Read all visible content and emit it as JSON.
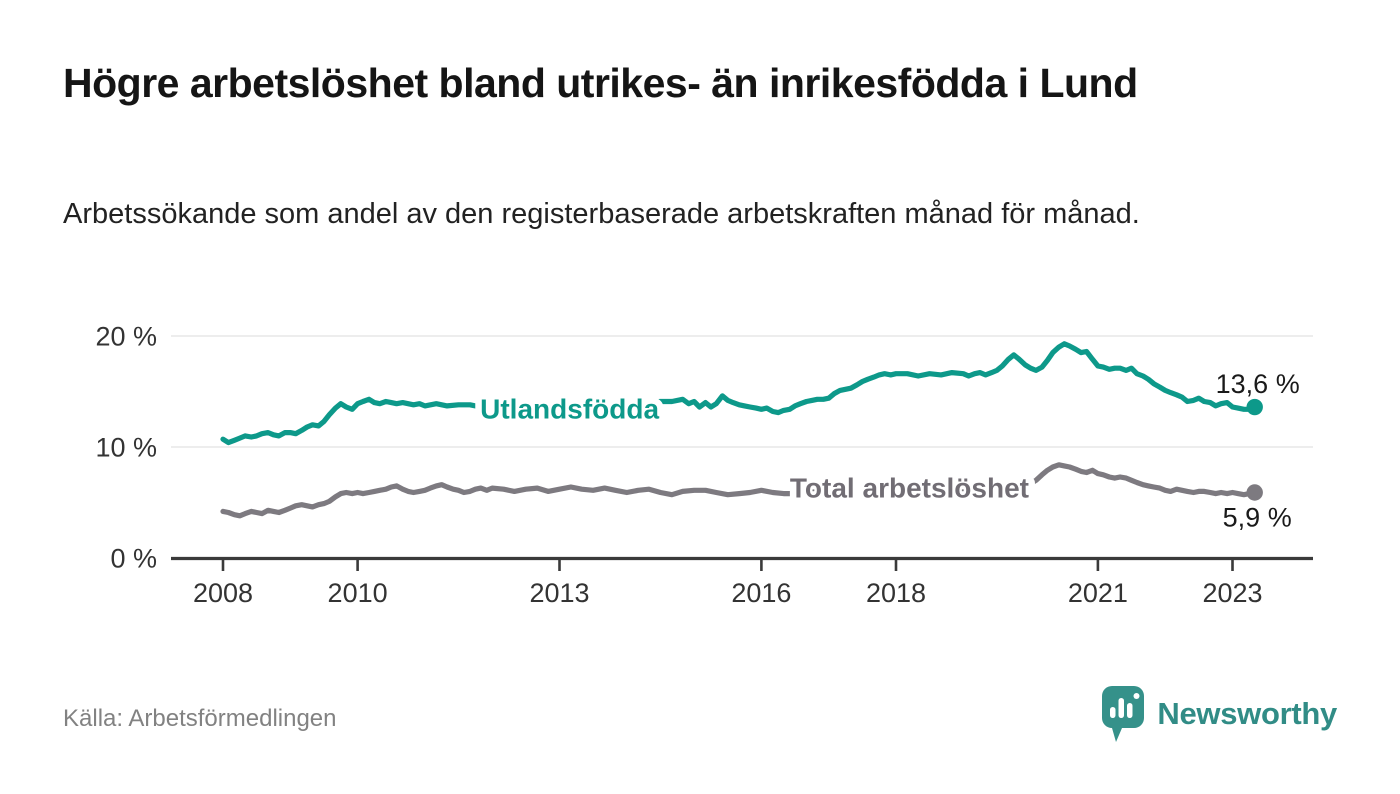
{
  "header": {
    "title": "Högre arbetslöshet bland utrikes- än inrikesfödda i Lund",
    "subtitle": "Arbetssökande som andel av den registerbaserade arbetskraften månad för månad."
  },
  "footer": {
    "source": "Källa: Arbetsförmedlingen",
    "brand": "Newsworthy"
  },
  "colors": {
    "teal": "#0d998a",
    "teal_label": "#0d998a",
    "gray": "#7d7a80",
    "gray_label": "#716d74",
    "axis": "#3a3a3a",
    "grid": "#e2e2e2",
    "tick_label": "#333333",
    "end_label": "#1a1a1a",
    "brand": "#318c86",
    "brand_icon": "#35918a"
  },
  "chart_data": {
    "type": "line",
    "x_unit": "decimal_year",
    "xlim": [
      2007.23,
      2024.2
    ],
    "ylim": [
      0,
      20.5
    ],
    "grid": true,
    "legend_position": "inline-labels",
    "yticks": [
      {
        "value": 0,
        "label": "0 %"
      },
      {
        "value": 10,
        "label": "10 %"
      },
      {
        "value": 20,
        "label": "20 %"
      }
    ],
    "grid_values": [
      10,
      20
    ],
    "xticks": [
      {
        "value": 2008,
        "label": "2008"
      },
      {
        "value": 2010,
        "label": "2010"
      },
      {
        "value": 2013,
        "label": "2013"
      },
      {
        "value": 2016,
        "label": "2016"
      },
      {
        "value": 2018,
        "label": "2018"
      },
      {
        "value": 2021,
        "label": "2021"
      },
      {
        "value": 2023,
        "label": "2023"
      }
    ],
    "series": [
      {
        "id": "utlandsfodda",
        "name": "Utlandsfödda",
        "color": "#0d998a",
        "label_color": "#0d998a",
        "label_at": [
          2013.15,
          13.45
        ],
        "end_label": "13,6 %",
        "end_value": 13.6,
        "points": [
          [
            2008.0,
            10.7
          ],
          [
            2008.08,
            10.4
          ],
          [
            2008.17,
            10.6
          ],
          [
            2008.25,
            10.8
          ],
          [
            2008.33,
            11.0
          ],
          [
            2008.42,
            10.9
          ],
          [
            2008.5,
            11.0
          ],
          [
            2008.58,
            11.2
          ],
          [
            2008.67,
            11.3
          ],
          [
            2008.75,
            11.1
          ],
          [
            2008.83,
            11.0
          ],
          [
            2008.92,
            11.3
          ],
          [
            2009.0,
            11.3
          ],
          [
            2009.08,
            11.2
          ],
          [
            2009.17,
            11.5
          ],
          [
            2009.25,
            11.8
          ],
          [
            2009.33,
            12.0
          ],
          [
            2009.42,
            11.9
          ],
          [
            2009.5,
            12.3
          ],
          [
            2009.58,
            12.9
          ],
          [
            2009.67,
            13.5
          ],
          [
            2009.75,
            13.9
          ],
          [
            2009.83,
            13.6
          ],
          [
            2009.92,
            13.4
          ],
          [
            2010.0,
            13.9
          ],
          [
            2010.08,
            14.1
          ],
          [
            2010.17,
            14.3
          ],
          [
            2010.25,
            14.0
          ],
          [
            2010.33,
            13.9
          ],
          [
            2010.42,
            14.1
          ],
          [
            2010.5,
            14.0
          ],
          [
            2010.58,
            13.9
          ],
          [
            2010.67,
            14.0
          ],
          [
            2010.75,
            13.9
          ],
          [
            2010.83,
            13.8
          ],
          [
            2010.92,
            13.9
          ],
          [
            2011.0,
            13.7
          ],
          [
            2011.17,
            13.9
          ],
          [
            2011.33,
            13.7
          ],
          [
            2011.5,
            13.8
          ],
          [
            2011.67,
            13.8
          ],
          [
            2011.83,
            13.6
          ],
          [
            2012.0,
            13.7
          ],
          [
            2012.25,
            13.6
          ],
          [
            2012.5,
            13.5
          ],
          [
            2012.75,
            13.6
          ],
          [
            2013.0,
            13.6
          ],
          [
            2013.25,
            13.7
          ],
          [
            2013.5,
            13.8
          ],
          [
            2013.75,
            13.7
          ],
          [
            2014.0,
            13.9
          ],
          [
            2014.25,
            14.0
          ],
          [
            2014.5,
            14.1
          ],
          [
            2014.67,
            14.1
          ],
          [
            2014.83,
            14.3
          ],
          [
            2014.92,
            13.9
          ],
          [
            2015.0,
            14.1
          ],
          [
            2015.08,
            13.6
          ],
          [
            2015.17,
            14.0
          ],
          [
            2015.25,
            13.6
          ],
          [
            2015.33,
            13.9
          ],
          [
            2015.42,
            14.6
          ],
          [
            2015.5,
            14.2
          ],
          [
            2015.58,
            14.0
          ],
          [
            2015.67,
            13.8
          ],
          [
            2015.75,
            13.7
          ],
          [
            2015.83,
            13.6
          ],
          [
            2015.92,
            13.5
          ],
          [
            2016.0,
            13.4
          ],
          [
            2016.08,
            13.5
          ],
          [
            2016.17,
            13.2
          ],
          [
            2016.25,
            13.1
          ],
          [
            2016.33,
            13.3
          ],
          [
            2016.42,
            13.4
          ],
          [
            2016.5,
            13.7
          ],
          [
            2016.58,
            13.9
          ],
          [
            2016.67,
            14.1
          ],
          [
            2016.75,
            14.2
          ],
          [
            2016.83,
            14.3
          ],
          [
            2016.92,
            14.3
          ],
          [
            2017.0,
            14.4
          ],
          [
            2017.08,
            14.8
          ],
          [
            2017.17,
            15.1
          ],
          [
            2017.25,
            15.2
          ],
          [
            2017.33,
            15.3
          ],
          [
            2017.42,
            15.6
          ],
          [
            2017.5,
            15.9
          ],
          [
            2017.58,
            16.1
          ],
          [
            2017.67,
            16.3
          ],
          [
            2017.75,
            16.5
          ],
          [
            2017.83,
            16.6
          ],
          [
            2017.92,
            16.5
          ],
          [
            2018.0,
            16.6
          ],
          [
            2018.17,
            16.6
          ],
          [
            2018.33,
            16.4
          ],
          [
            2018.5,
            16.6
          ],
          [
            2018.67,
            16.5
          ],
          [
            2018.83,
            16.7
          ],
          [
            2019.0,
            16.6
          ],
          [
            2019.08,
            16.4
          ],
          [
            2019.17,
            16.6
          ],
          [
            2019.25,
            16.7
          ],
          [
            2019.33,
            16.5
          ],
          [
            2019.42,
            16.7
          ],
          [
            2019.5,
            16.9
          ],
          [
            2019.58,
            17.3
          ],
          [
            2019.67,
            17.9
          ],
          [
            2019.75,
            18.3
          ],
          [
            2019.83,
            17.9
          ],
          [
            2019.92,
            17.4
          ],
          [
            2020.0,
            17.1
          ],
          [
            2020.08,
            16.9
          ],
          [
            2020.17,
            17.2
          ],
          [
            2020.25,
            17.8
          ],
          [
            2020.33,
            18.5
          ],
          [
            2020.42,
            19.0
          ],
          [
            2020.5,
            19.3
          ],
          [
            2020.58,
            19.1
          ],
          [
            2020.67,
            18.8
          ],
          [
            2020.75,
            18.5
          ],
          [
            2020.83,
            18.6
          ],
          [
            2020.92,
            17.9
          ],
          [
            2021.0,
            17.3
          ],
          [
            2021.08,
            17.2
          ],
          [
            2021.17,
            17.0
          ],
          [
            2021.25,
            17.1
          ],
          [
            2021.33,
            17.1
          ],
          [
            2021.42,
            16.9
          ],
          [
            2021.5,
            17.1
          ],
          [
            2021.58,
            16.6
          ],
          [
            2021.67,
            16.4
          ],
          [
            2021.75,
            16.1
          ],
          [
            2021.83,
            15.7
          ],
          [
            2021.92,
            15.4
          ],
          [
            2022.0,
            15.1
          ],
          [
            2022.08,
            14.9
          ],
          [
            2022.17,
            14.7
          ],
          [
            2022.25,
            14.5
          ],
          [
            2022.33,
            14.1
          ],
          [
            2022.42,
            14.2
          ],
          [
            2022.5,
            14.4
          ],
          [
            2022.58,
            14.1
          ],
          [
            2022.67,
            14.0
          ],
          [
            2022.75,
            13.7
          ],
          [
            2022.83,
            13.9
          ],
          [
            2022.92,
            14.0
          ],
          [
            2023.0,
            13.6
          ],
          [
            2023.08,
            13.5
          ],
          [
            2023.17,
            13.4
          ],
          [
            2023.25,
            13.4
          ],
          [
            2023.33,
            13.6
          ]
        ]
      },
      {
        "id": "total",
        "name": "Total arbetslöshet",
        "color": "#7d7a80",
        "label_color": "#716d74",
        "label_at": [
          2018.2,
          6.35
        ],
        "end_label": "5,9 %",
        "end_value": 5.9,
        "points": [
          [
            2008.0,
            4.2
          ],
          [
            2008.08,
            4.1
          ],
          [
            2008.17,
            3.9
          ],
          [
            2008.25,
            3.8
          ],
          [
            2008.33,
            4.0
          ],
          [
            2008.42,
            4.2
          ],
          [
            2008.5,
            4.1
          ],
          [
            2008.58,
            4.0
          ],
          [
            2008.67,
            4.3
          ],
          [
            2008.75,
            4.2
          ],
          [
            2008.83,
            4.1
          ],
          [
            2008.92,
            4.3
          ],
          [
            2009.0,
            4.5
          ],
          [
            2009.08,
            4.7
          ],
          [
            2009.17,
            4.8
          ],
          [
            2009.25,
            4.7
          ],
          [
            2009.33,
            4.6
          ],
          [
            2009.42,
            4.8
          ],
          [
            2009.5,
            4.9
          ],
          [
            2009.58,
            5.1
          ],
          [
            2009.67,
            5.5
          ],
          [
            2009.75,
            5.8
          ],
          [
            2009.83,
            5.9
          ],
          [
            2009.92,
            5.8
          ],
          [
            2010.0,
            5.9
          ],
          [
            2010.08,
            5.8
          ],
          [
            2010.17,
            5.9
          ],
          [
            2010.25,
            6.0
          ],
          [
            2010.33,
            6.1
          ],
          [
            2010.42,
            6.2
          ],
          [
            2010.5,
            6.4
          ],
          [
            2010.58,
            6.5
          ],
          [
            2010.67,
            6.2
          ],
          [
            2010.75,
            6.0
          ],
          [
            2010.83,
            5.9
          ],
          [
            2010.92,
            6.0
          ],
          [
            2011.0,
            6.1
          ],
          [
            2011.08,
            6.3
          ],
          [
            2011.17,
            6.5
          ],
          [
            2011.25,
            6.6
          ],
          [
            2011.33,
            6.4
          ],
          [
            2011.42,
            6.2
          ],
          [
            2011.5,
            6.1
          ],
          [
            2011.58,
            5.9
          ],
          [
            2011.67,
            6.0
          ],
          [
            2011.75,
            6.2
          ],
          [
            2011.83,
            6.3
          ],
          [
            2011.92,
            6.1
          ],
          [
            2012.0,
            6.3
          ],
          [
            2012.17,
            6.2
          ],
          [
            2012.33,
            6.0
          ],
          [
            2012.5,
            6.2
          ],
          [
            2012.67,
            6.3
          ],
          [
            2012.83,
            6.0
          ],
          [
            2013.0,
            6.2
          ],
          [
            2013.17,
            6.4
          ],
          [
            2013.33,
            6.2
          ],
          [
            2013.5,
            6.1
          ],
          [
            2013.67,
            6.3
          ],
          [
            2013.83,
            6.1
          ],
          [
            2014.0,
            5.9
          ],
          [
            2014.17,
            6.1
          ],
          [
            2014.33,
            6.2
          ],
          [
            2014.5,
            5.9
          ],
          [
            2014.67,
            5.7
          ],
          [
            2014.83,
            6.0
          ],
          [
            2015.0,
            6.1
          ],
          [
            2015.17,
            6.1
          ],
          [
            2015.33,
            5.9
          ],
          [
            2015.5,
            5.7
          ],
          [
            2015.67,
            5.8
          ],
          [
            2015.83,
            5.9
          ],
          [
            2016.0,
            6.1
          ],
          [
            2016.17,
            5.9
          ],
          [
            2016.33,
            5.8
          ],
          [
            2016.5,
            5.8
          ],
          [
            2016.67,
            5.9
          ],
          [
            2016.83,
            6.0
          ],
          [
            2017.0,
            5.9
          ],
          [
            2017.25,
            6.0
          ],
          [
            2017.5,
            6.0
          ],
          [
            2017.75,
            6.1
          ],
          [
            2018.0,
            6.1
          ],
          [
            2018.25,
            6.0
          ],
          [
            2018.5,
            6.1
          ],
          [
            2018.75,
            6.1
          ],
          [
            2019.0,
            6.1
          ],
          [
            2019.25,
            6.2
          ],
          [
            2019.5,
            6.2
          ],
          [
            2019.75,
            6.3
          ],
          [
            2019.92,
            6.5
          ],
          [
            2020.0,
            6.7
          ],
          [
            2020.08,
            7.0
          ],
          [
            2020.17,
            7.5
          ],
          [
            2020.25,
            7.9
          ],
          [
            2020.33,
            8.2
          ],
          [
            2020.42,
            8.4
          ],
          [
            2020.5,
            8.3
          ],
          [
            2020.58,
            8.2
          ],
          [
            2020.67,
            8.0
          ],
          [
            2020.75,
            7.8
          ],
          [
            2020.83,
            7.7
          ],
          [
            2020.92,
            7.9
          ],
          [
            2021.0,
            7.6
          ],
          [
            2021.08,
            7.5
          ],
          [
            2021.17,
            7.3
          ],
          [
            2021.25,
            7.2
          ],
          [
            2021.33,
            7.3
          ],
          [
            2021.42,
            7.2
          ],
          [
            2021.5,
            7.0
          ],
          [
            2021.58,
            6.8
          ],
          [
            2021.67,
            6.6
          ],
          [
            2021.75,
            6.5
          ],
          [
            2021.83,
            6.4
          ],
          [
            2021.92,
            6.3
          ],
          [
            2022.0,
            6.1
          ],
          [
            2022.08,
            6.0
          ],
          [
            2022.17,
            6.2
          ],
          [
            2022.25,
            6.1
          ],
          [
            2022.33,
            6.0
          ],
          [
            2022.42,
            5.9
          ],
          [
            2022.5,
            6.0
          ],
          [
            2022.58,
            6.0
          ],
          [
            2022.67,
            5.9
          ],
          [
            2022.75,
            5.8
          ],
          [
            2022.83,
            5.9
          ],
          [
            2022.92,
            5.8
          ],
          [
            2023.0,
            5.9
          ],
          [
            2023.08,
            5.8
          ],
          [
            2023.17,
            5.7
          ],
          [
            2023.25,
            5.8
          ],
          [
            2023.33,
            5.9
          ]
        ]
      }
    ]
  }
}
